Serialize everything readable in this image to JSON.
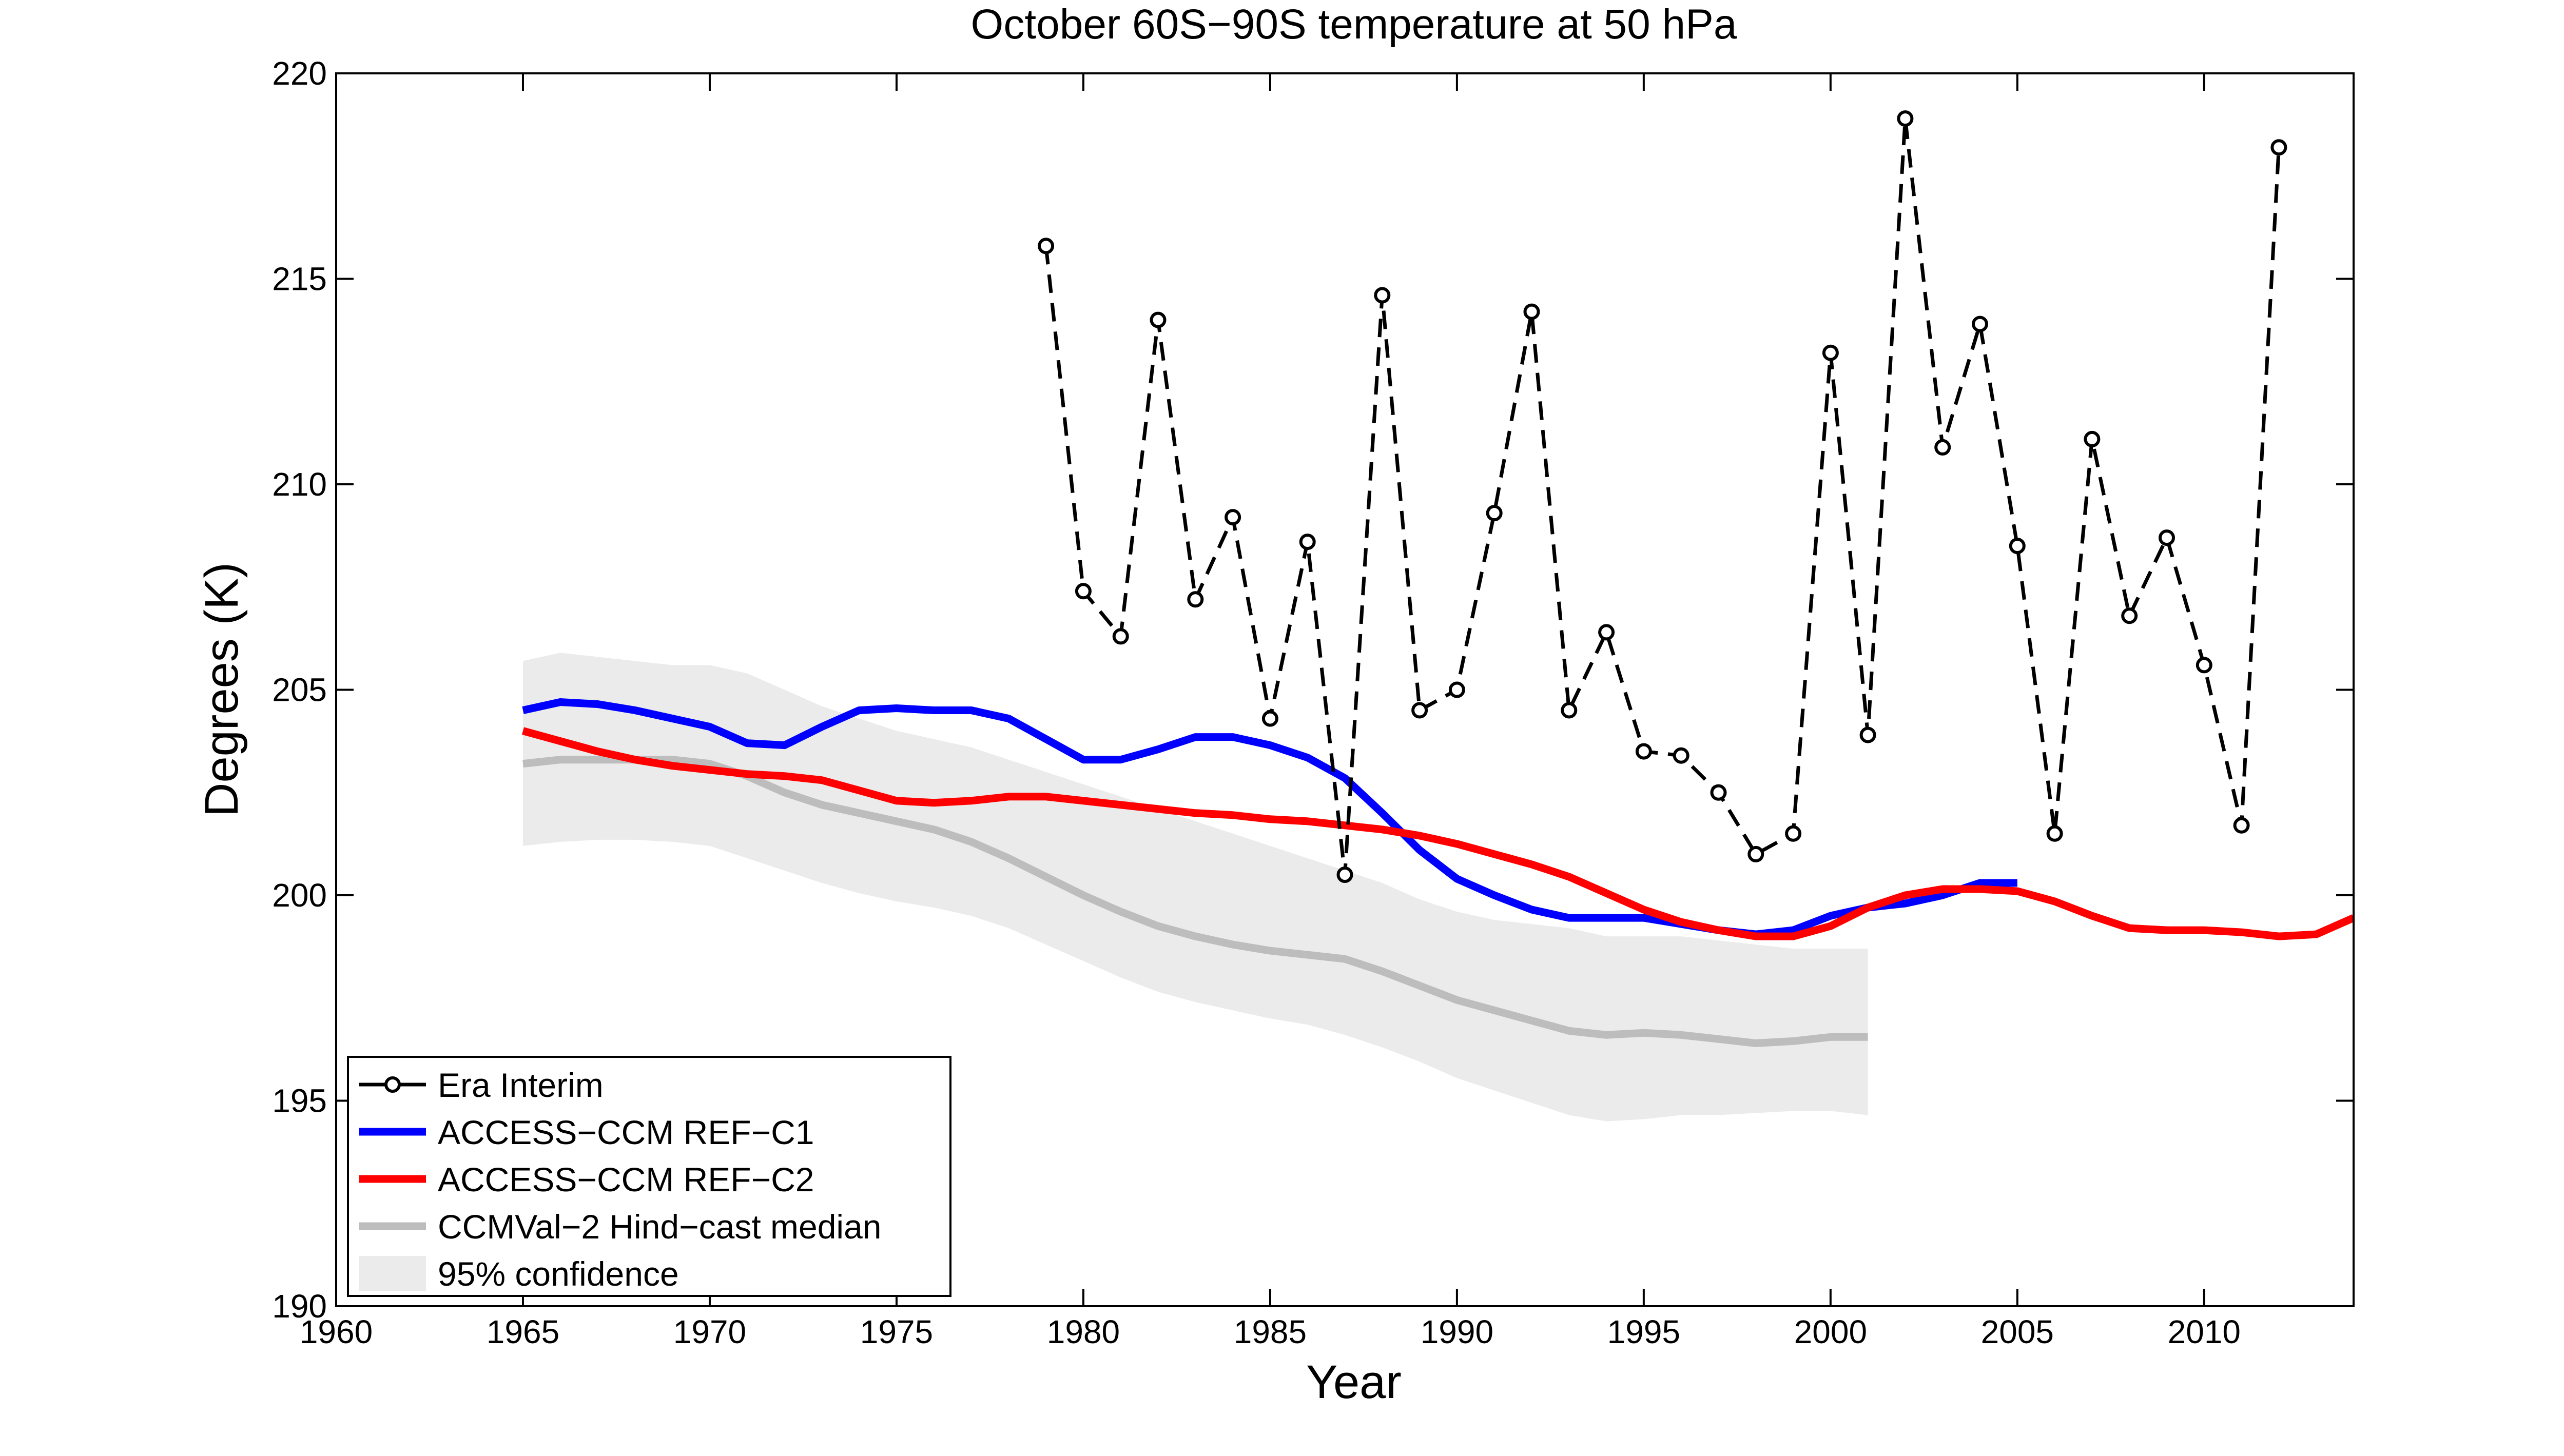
{
  "chart_data": {
    "type": "line",
    "title": "October 60S−90S temperature at 50 hPa",
    "xlabel": "Year",
    "ylabel": "Degrees (K)",
    "xlim": [
      1960,
      2014
    ],
    "ylim": [
      190,
      220
    ],
    "x_ticks": [
      "1960",
      "1965",
      "1970",
      "1975",
      "1980",
      "1985",
      "1990",
      "1995",
      "2000",
      "2005",
      "2010"
    ],
    "y_ticks": [
      "190",
      "195",
      "200",
      "205",
      "210",
      "215",
      "220"
    ],
    "grid": false,
    "legend_position": "bottom-left",
    "series": [
      {
        "name": "Era Interim",
        "style": "dashed-markers",
        "color": "#000000",
        "x": [
          1979,
          1980,
          1981,
          1982,
          1983,
          1984,
          1985,
          1986,
          1987,
          1988,
          1989,
          1990,
          1991,
          1992,
          1993,
          1994,
          1995,
          1996,
          1997,
          1998,
          1999,
          2000,
          2001,
          2002,
          2003,
          2004,
          2005,
          2006,
          2007,
          2008,
          2009,
          2010,
          2011,
          2012
        ],
        "y": [
          215.8,
          207.4,
          206.3,
          214.0,
          207.2,
          209.2,
          204.3,
          208.6,
          200.5,
          214.6,
          204.5,
          205.0,
          209.3,
          214.2,
          204.5,
          206.4,
          203.5,
          203.4,
          202.5,
          201.0,
          201.5,
          213.2,
          203.9,
          218.9,
          210.9,
          213.9,
          208.5,
          201.5,
          211.1,
          206.8,
          208.7,
          205.6,
          201.7,
          218.2
        ]
      },
      {
        "name": "ACCESS−CCM REF−C1",
        "style": "solid",
        "color": "#0000ff",
        "x": [
          1965,
          1966,
          1967,
          1968,
          1969,
          1970,
          1971,
          1972,
          1973,
          1974,
          1975,
          1976,
          1977,
          1978,
          1979,
          1980,
          1981,
          1982,
          1983,
          1984,
          1985,
          1986,
          1987,
          1988,
          1989,
          1990,
          1991,
          1992,
          1993,
          1994,
          1995,
          1996,
          1997,
          1998,
          1999,
          2000,
          2001,
          2002,
          2003,
          2004,
          2005
        ],
        "y": [
          204.5,
          204.7,
          204.65,
          204.5,
          204.3,
          204.1,
          203.7,
          203.65,
          204.1,
          204.5,
          204.55,
          204.5,
          204.5,
          204.3,
          203.8,
          203.3,
          203.3,
          203.55,
          203.85,
          203.85,
          203.65,
          203.35,
          202.85,
          202.0,
          201.1,
          200.4,
          200.0,
          199.65,
          199.45,
          199.45,
          199.45,
          199.3,
          199.15,
          199.05,
          199.15,
          199.5,
          199.7,
          199.8,
          200.0,
          200.3,
          200.3
        ]
      },
      {
        "name": "ACCESS−CCM REF−C2",
        "style": "solid",
        "color": "#ff0000",
        "x": [
          1965,
          1966,
          1967,
          1968,
          1969,
          1970,
          1971,
          1972,
          1973,
          1974,
          1975,
          1976,
          1977,
          1978,
          1979,
          1980,
          1981,
          1982,
          1983,
          1984,
          1985,
          1986,
          1987,
          1988,
          1989,
          1990,
          1991,
          1992,
          1993,
          1994,
          1995,
          1996,
          1997,
          1998,
          1999,
          2000,
          2001,
          2002,
          2003,
          2004,
          2005,
          2006,
          2007,
          2008,
          2009,
          2010,
          2011,
          2012,
          2013,
          2014
        ],
        "y": [
          204.0,
          203.75,
          203.5,
          203.3,
          203.15,
          203.05,
          202.95,
          202.9,
          202.8,
          202.55,
          202.3,
          202.25,
          202.3,
          202.4,
          202.4,
          202.3,
          202.2,
          202.1,
          202.0,
          201.95,
          201.85,
          201.8,
          201.7,
          201.6,
          201.45,
          201.25,
          201.0,
          200.75,
          200.45,
          200.05,
          199.65,
          199.35,
          199.15,
          199.0,
          199.0,
          199.25,
          199.7,
          200.0,
          200.15,
          200.15,
          200.1,
          199.85,
          199.5,
          199.2,
          199.15,
          199.15,
          199.1,
          199.0,
          199.05,
          199.45
        ]
      },
      {
        "name": "CCMVal−2 Hind−cast median",
        "style": "solid",
        "color": "#bdbdbd",
        "x": [
          1965,
          1966,
          1967,
          1968,
          1969,
          1970,
          1971,
          1972,
          1973,
          1974,
          1975,
          1976,
          1977,
          1978,
          1979,
          1980,
          1981,
          1982,
          1983,
          1984,
          1985,
          1986,
          1987,
          1988,
          1989,
          1990,
          1991,
          1992,
          1993,
          1994,
          1995,
          1996,
          1997,
          1998,
          1999,
          2000,
          2001
        ],
        "y": [
          203.2,
          203.3,
          203.3,
          203.3,
          203.3,
          203.2,
          202.9,
          202.5,
          202.2,
          202.0,
          201.8,
          201.6,
          201.3,
          200.9,
          200.45,
          200.0,
          199.6,
          199.25,
          199.0,
          198.8,
          198.65,
          198.55,
          198.45,
          198.15,
          197.8,
          197.45,
          197.2,
          196.95,
          196.7,
          196.6,
          196.65,
          196.6,
          196.5,
          196.4,
          196.45,
          196.55,
          196.55
        ]
      },
      {
        "name": "95% confidence",
        "style": "band",
        "color": "#ebebeb",
        "x": [
          1965,
          1966,
          1967,
          1968,
          1969,
          1970,
          1971,
          1972,
          1973,
          1974,
          1975,
          1976,
          1977,
          1978,
          1979,
          1980,
          1981,
          1982,
          1983,
          1984,
          1985,
          1986,
          1987,
          1988,
          1989,
          1990,
          1991,
          1992,
          1993,
          1994,
          1995,
          1996,
          1997,
          1998,
          1999,
          2000,
          2001
        ],
        "upper": [
          205.7,
          205.9,
          205.8,
          205.7,
          205.6,
          205.6,
          205.4,
          205.0,
          204.6,
          204.3,
          204.0,
          203.8,
          203.6,
          203.3,
          203.0,
          202.7,
          202.4,
          202.1,
          201.8,
          201.5,
          201.2,
          200.9,
          200.6,
          200.3,
          199.9,
          199.6,
          199.4,
          199.3,
          199.2,
          199.0,
          199.0,
          199.0,
          198.9,
          198.8,
          198.7,
          198.7,
          198.7
        ],
        "lower": [
          201.2,
          201.3,
          201.35,
          201.35,
          201.3,
          201.2,
          200.9,
          200.6,
          200.3,
          200.05,
          199.85,
          199.7,
          199.5,
          199.2,
          198.8,
          198.4,
          198.0,
          197.65,
          197.4,
          197.2,
          197.0,
          196.85,
          196.6,
          196.3,
          195.95,
          195.55,
          195.25,
          194.95,
          194.65,
          194.5,
          194.55,
          194.65,
          194.65,
          194.7,
          194.75,
          194.75,
          194.65
        ]
      }
    ]
  }
}
